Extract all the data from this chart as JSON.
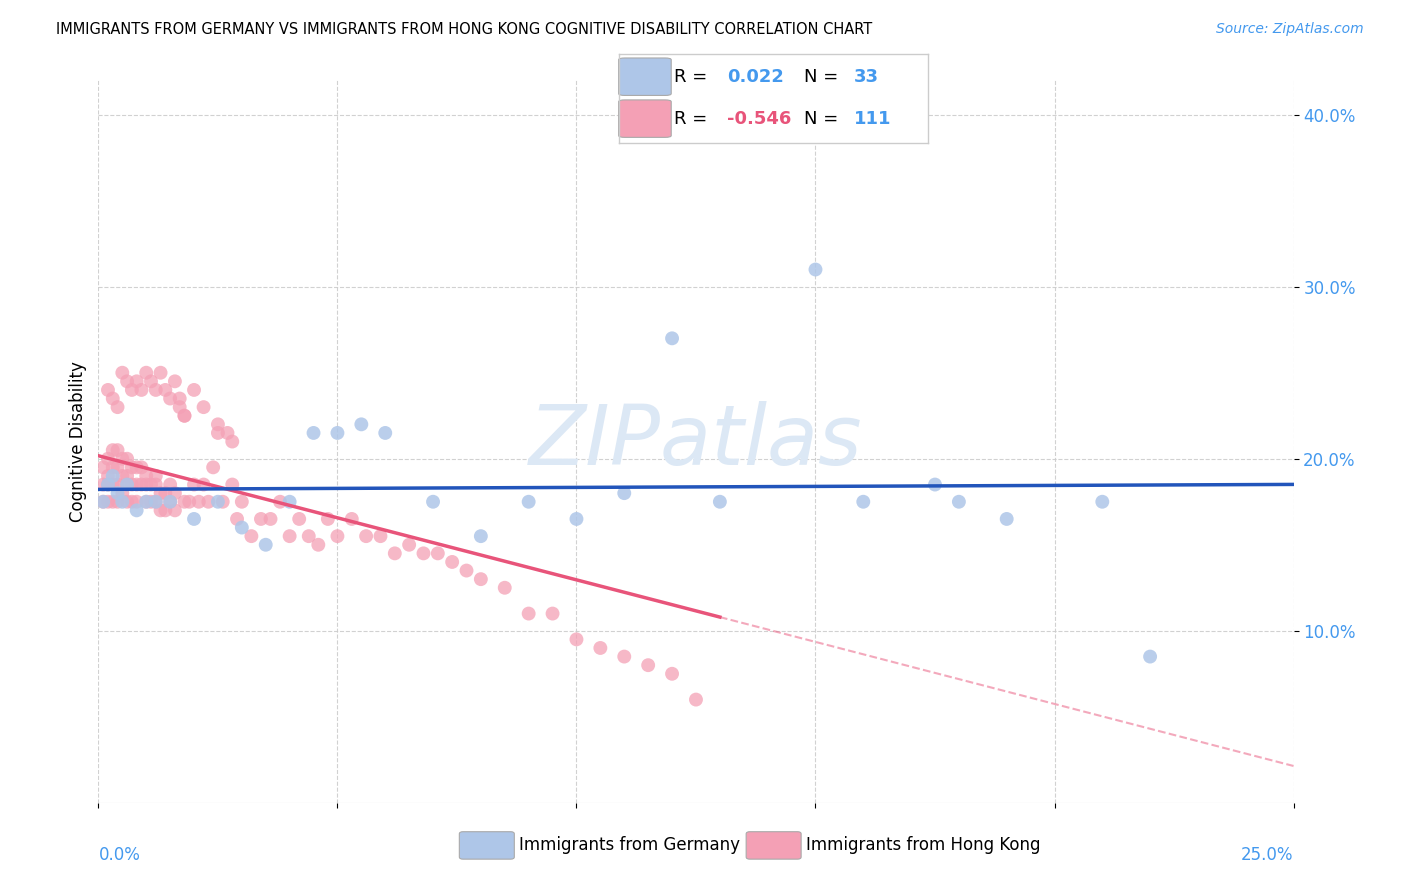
{
  "title": "IMMIGRANTS FROM GERMANY VS IMMIGRANTS FROM HONG KONG COGNITIVE DISABILITY CORRELATION CHART",
  "source": "Source: ZipAtlas.com",
  "ylabel": "Cognitive Disability",
  "xlim": [
    0.0,
    0.25
  ],
  "ylim": [
    0.0,
    0.42
  ],
  "yticks": [
    0.1,
    0.2,
    0.3,
    0.4
  ],
  "xticks": [
    0.0,
    0.05,
    0.1,
    0.15,
    0.2,
    0.25
  ],
  "germany_R": 0.022,
  "germany_N": 33,
  "hk_R": -0.546,
  "hk_N": 111,
  "germany_color": "#aec6e8",
  "hk_color": "#f4a0b5",
  "germany_line_color": "#2255bb",
  "hk_line_color": "#e8547a",
  "tick_color": "#4499ee",
  "background_color": "#ffffff",
  "watermark_color": "#dce8f5",
  "germany_x": [
    0.001,
    0.002,
    0.003,
    0.004,
    0.005,
    0.006,
    0.008,
    0.01,
    0.012,
    0.015,
    0.02,
    0.025,
    0.03,
    0.035,
    0.04,
    0.045,
    0.05,
    0.055,
    0.06,
    0.07,
    0.08,
    0.09,
    0.1,
    0.11,
    0.12,
    0.13,
    0.15,
    0.16,
    0.175,
    0.18,
    0.19,
    0.21,
    0.22
  ],
  "germany_y": [
    0.175,
    0.185,
    0.19,
    0.18,
    0.175,
    0.185,
    0.17,
    0.175,
    0.175,
    0.175,
    0.165,
    0.175,
    0.16,
    0.15,
    0.175,
    0.215,
    0.215,
    0.22,
    0.215,
    0.175,
    0.155,
    0.175,
    0.165,
    0.18,
    0.27,
    0.175,
    0.31,
    0.175,
    0.185,
    0.175,
    0.165,
    0.175,
    0.085
  ],
  "hk_x": [
    0.001,
    0.001,
    0.001,
    0.002,
    0.002,
    0.002,
    0.002,
    0.003,
    0.003,
    0.003,
    0.003,
    0.004,
    0.004,
    0.004,
    0.004,
    0.005,
    0.005,
    0.005,
    0.006,
    0.006,
    0.006,
    0.006,
    0.007,
    0.007,
    0.007,
    0.008,
    0.008,
    0.008,
    0.009,
    0.009,
    0.01,
    0.01,
    0.01,
    0.011,
    0.011,
    0.012,
    0.012,
    0.012,
    0.013,
    0.013,
    0.014,
    0.014,
    0.015,
    0.015,
    0.016,
    0.016,
    0.017,
    0.018,
    0.018,
    0.019,
    0.02,
    0.021,
    0.022,
    0.023,
    0.024,
    0.025,
    0.026,
    0.027,
    0.028,
    0.029,
    0.03,
    0.032,
    0.034,
    0.036,
    0.038,
    0.04,
    0.042,
    0.044,
    0.046,
    0.048,
    0.05,
    0.053,
    0.056,
    0.059,
    0.062,
    0.065,
    0.068,
    0.071,
    0.074,
    0.077,
    0.08,
    0.085,
    0.09,
    0.095,
    0.1,
    0.105,
    0.11,
    0.115,
    0.12,
    0.125,
    0.002,
    0.003,
    0.004,
    0.005,
    0.006,
    0.007,
    0.008,
    0.009,
    0.01,
    0.011,
    0.012,
    0.013,
    0.014,
    0.015,
    0.016,
    0.017,
    0.018,
    0.02,
    0.022,
    0.025,
    0.028
  ],
  "hk_y": [
    0.185,
    0.195,
    0.175,
    0.2,
    0.19,
    0.185,
    0.175,
    0.205,
    0.195,
    0.185,
    0.175,
    0.205,
    0.195,
    0.185,
    0.175,
    0.2,
    0.19,
    0.18,
    0.2,
    0.19,
    0.185,
    0.175,
    0.195,
    0.185,
    0.175,
    0.195,
    0.185,
    0.175,
    0.195,
    0.185,
    0.19,
    0.185,
    0.175,
    0.185,
    0.175,
    0.19,
    0.185,
    0.175,
    0.18,
    0.17,
    0.18,
    0.17,
    0.185,
    0.175,
    0.18,
    0.17,
    0.23,
    0.225,
    0.175,
    0.175,
    0.185,
    0.175,
    0.185,
    0.175,
    0.195,
    0.22,
    0.175,
    0.215,
    0.185,
    0.165,
    0.175,
    0.155,
    0.165,
    0.165,
    0.175,
    0.155,
    0.165,
    0.155,
    0.15,
    0.165,
    0.155,
    0.165,
    0.155,
    0.155,
    0.145,
    0.15,
    0.145,
    0.145,
    0.14,
    0.135,
    0.13,
    0.125,
    0.11,
    0.11,
    0.095,
    0.09,
    0.085,
    0.08,
    0.075,
    0.06,
    0.24,
    0.235,
    0.23,
    0.25,
    0.245,
    0.24,
    0.245,
    0.24,
    0.25,
    0.245,
    0.24,
    0.25,
    0.24,
    0.235,
    0.245,
    0.235,
    0.225,
    0.24,
    0.23,
    0.215,
    0.21
  ]
}
